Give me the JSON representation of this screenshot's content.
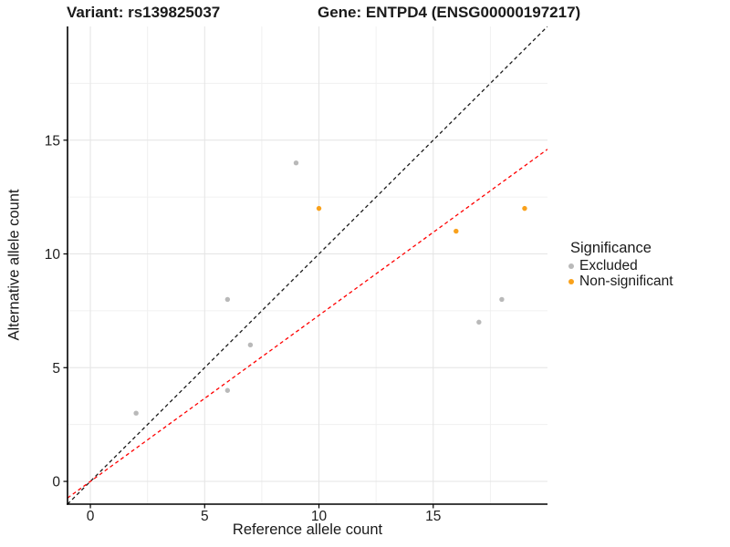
{
  "titles": {
    "variant": "Variant: rs139825037",
    "gene": "Gene: ENTPD4 (ENSG00000197217)"
  },
  "chart_data": {
    "type": "scatter",
    "xlabel": "Reference allele count",
    "ylabel": "Alternative allele count",
    "xlim": [
      -1,
      20
    ],
    "ylim": [
      -1,
      20
    ],
    "x_ticks": [
      0,
      5,
      10,
      15
    ],
    "y_ticks": [
      0,
      5,
      10,
      15
    ],
    "x_minor_ticks": [
      2.5,
      7.5,
      12.5,
      17.5
    ],
    "y_minor_ticks": [
      2.5,
      7.5,
      12.5,
      17.5
    ],
    "grid": true,
    "series": [
      {
        "name": "Excluded",
        "color": "#B9B9B9",
        "points": [
          [
            2,
            3
          ],
          [
            6,
            4
          ],
          [
            6,
            8
          ],
          [
            7,
            6
          ],
          [
            9,
            14
          ],
          [
            17,
            7
          ],
          [
            18,
            8
          ]
        ]
      },
      {
        "name": "Non-significant",
        "color": "#F9A11B",
        "points": [
          [
            10,
            12
          ],
          [
            16,
            11
          ],
          [
            19,
            12
          ]
        ]
      }
    ],
    "lines": [
      {
        "name": "identity-line",
        "color": "#1A1A1A",
        "slope": 1,
        "intercept": 0,
        "style": "dashed"
      },
      {
        "name": "fit-line",
        "color": "#FF0000",
        "slope": 0.73,
        "intercept": 0,
        "style": "dashed"
      }
    ],
    "legend": {
      "title": "Significance",
      "position": "right",
      "entries": [
        {
          "label": "Excluded",
          "color": "#B9B9B9"
        },
        {
          "label": "Non-significant",
          "color": "#F9A11B"
        }
      ]
    }
  }
}
